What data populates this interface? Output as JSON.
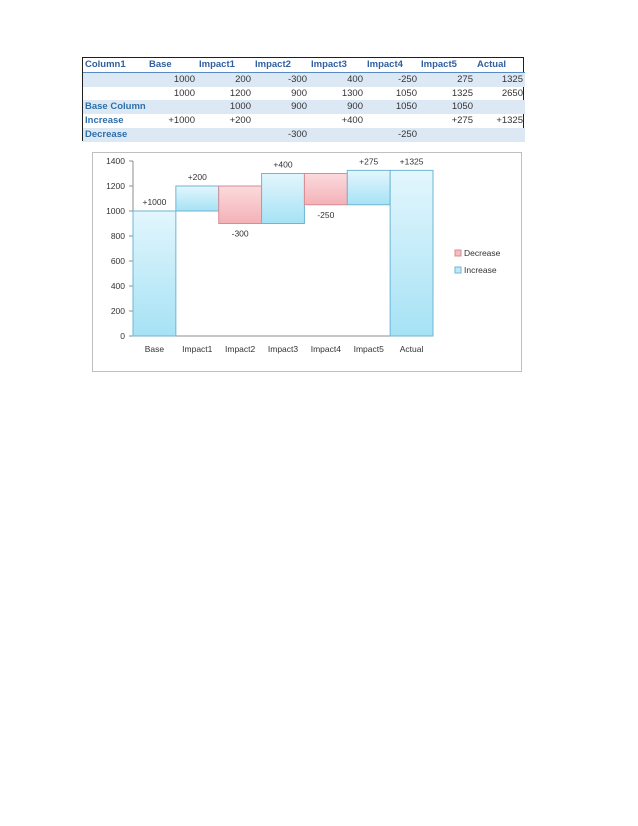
{
  "table": {
    "headers": [
      "Column1",
      "Base",
      "Impact1",
      "Impact2",
      "Impact3",
      "Impact4",
      "Impact5",
      "Actual"
    ],
    "rows": [
      [
        "",
        "",
        "1000",
        "200",
        "-300",
        "400",
        "-250",
        "275",
        "1325"
      ],
      [
        "",
        "",
        "1000",
        "1200",
        "900",
        "1300",
        "1050",
        "1325",
        "2650"
      ],
      [
        "Base Column",
        "",
        "1000",
        "900",
        "900",
        "1050",
        "1050",
        ""
      ],
      [
        "Increase",
        "+1000",
        "+200",
        "",
        "+400",
        "",
        "+275",
        "+1325"
      ],
      [
        "Decrease",
        "",
        "",
        "-300",
        "",
        "-250",
        "",
        ""
      ]
    ]
  },
  "chart_data": {
    "type": "bar",
    "subtype": "waterfall",
    "categories": [
      "Base",
      "Impact1",
      "Impact2",
      "Impact3",
      "Impact4",
      "Impact5",
      "Actual"
    ],
    "base_values": [
      0,
      1000,
      900,
      900,
      1050,
      1050,
      0
    ],
    "series": [
      {
        "name": "Decrease",
        "values": [
          0,
          0,
          300,
          0,
          250,
          0,
          0
        ]
      },
      {
        "name": "Increase",
        "values": [
          1000,
          200,
          0,
          400,
          0,
          275,
          1325
        ]
      }
    ],
    "data_labels": [
      "+1000",
      "+200",
      "-300",
      "+400",
      "-250",
      "+275",
      "+1325"
    ],
    "ylim": [
      0,
      1400
    ],
    "yticks": [
      0,
      200,
      400,
      600,
      800,
      1000,
      1200,
      1400
    ],
    "legend_position": "right",
    "colors": {
      "Increase": "#bfe9f7",
      "Decrease": "#f4bcc0",
      "increase_edge": "#6fb6d2",
      "decrease_edge": "#d98b92"
    }
  }
}
